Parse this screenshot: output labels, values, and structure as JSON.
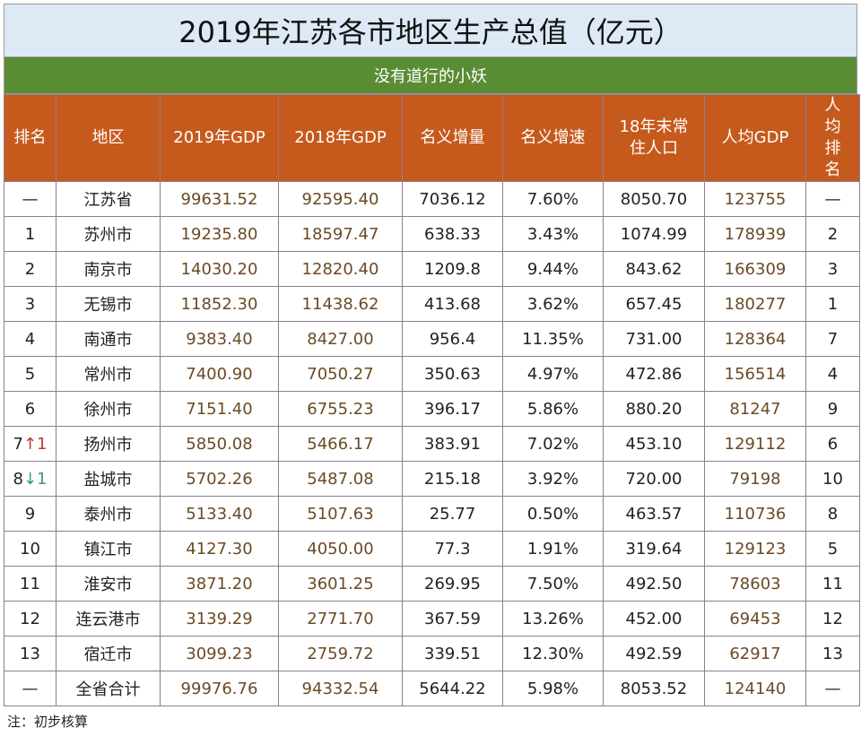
{
  "title": "2019年江苏各市地区生产总值（亿元）",
  "subtitle": "没有道行的小妖",
  "headers": [
    "排名",
    "地区",
    "2019年GDP",
    "2018年GDP",
    "名义增量",
    "名义增速",
    "18年末常住人口",
    "人均GDP",
    "人均排名"
  ],
  "rows": [
    {
      "rank": "—",
      "change": "",
      "change_dir": "",
      "region": "江苏省",
      "gdp2019": "99631.52",
      "gdp2018": "92595.40",
      "increase": "7036.12",
      "growth": "7.60%",
      "population": "8050.70",
      "per_capita": "123755",
      "pc_rank": "—"
    },
    {
      "rank": "1",
      "change": "",
      "change_dir": "",
      "region": "苏州市",
      "gdp2019": "19235.80",
      "gdp2018": "18597.47",
      "increase": "638.33",
      "growth": "3.43%",
      "population": "1074.99",
      "per_capita": "178939",
      "pc_rank": "2"
    },
    {
      "rank": "2",
      "change": "",
      "change_dir": "",
      "region": "南京市",
      "gdp2019": "14030.20",
      "gdp2018": "12820.40",
      "increase": "1209.8",
      "growth": "9.44%",
      "population": "843.62",
      "per_capita": "166309",
      "pc_rank": "3"
    },
    {
      "rank": "3",
      "change": "",
      "change_dir": "",
      "region": "无锡市",
      "gdp2019": "11852.30",
      "gdp2018": "11438.62",
      "increase": "413.68",
      "growth": "3.62%",
      "population": "657.45",
      "per_capita": "180277",
      "pc_rank": "1"
    },
    {
      "rank": "4",
      "change": "",
      "change_dir": "",
      "region": "南通市",
      "gdp2019": "9383.40",
      "gdp2018": "8427.00",
      "increase": "956.4",
      "growth": "11.35%",
      "population": "731.00",
      "per_capita": "128364",
      "pc_rank": "7"
    },
    {
      "rank": "5",
      "change": "",
      "change_dir": "",
      "region": "常州市",
      "gdp2019": "7400.90",
      "gdp2018": "7050.27",
      "increase": "350.63",
      "growth": "4.97%",
      "population": "472.86",
      "per_capita": "156514",
      "pc_rank": "4"
    },
    {
      "rank": "6",
      "change": "",
      "change_dir": "",
      "region": "徐州市",
      "gdp2019": "7151.40",
      "gdp2018": "6755.23",
      "increase": "396.17",
      "growth": "5.86%",
      "population": "880.20",
      "per_capita": "81247",
      "pc_rank": "9"
    },
    {
      "rank": "7",
      "change": "↑1",
      "change_dir": "up",
      "region": "扬州市",
      "gdp2019": "5850.08",
      "gdp2018": "5466.17",
      "increase": "383.91",
      "growth": "7.02%",
      "population": "453.10",
      "per_capita": "129112",
      "pc_rank": "6"
    },
    {
      "rank": "8",
      "change": "↓1",
      "change_dir": "dn",
      "region": "盐城市",
      "gdp2019": "5702.26",
      "gdp2018": "5487.08",
      "increase": "215.18",
      "growth": "3.92%",
      "population": "720.00",
      "per_capita": "79198",
      "pc_rank": "10"
    },
    {
      "rank": "9",
      "change": "",
      "change_dir": "",
      "region": "泰州市",
      "gdp2019": "5133.40",
      "gdp2018": "5107.63",
      "increase": "25.77",
      "growth": "0.50%",
      "population": "463.57",
      "per_capita": "110736",
      "pc_rank": "8"
    },
    {
      "rank": "10",
      "change": "",
      "change_dir": "",
      "region": "镇江市",
      "gdp2019": "4127.30",
      "gdp2018": "4050.00",
      "increase": "77.3",
      "growth": "1.91%",
      "population": "319.64",
      "per_capita": "129123",
      "pc_rank": "5"
    },
    {
      "rank": "11",
      "change": "",
      "change_dir": "",
      "region": "淮安市",
      "gdp2019": "3871.20",
      "gdp2018": "3601.25",
      "increase": "269.95",
      "growth": "7.50%",
      "population": "492.50",
      "per_capita": "78603",
      "pc_rank": "11"
    },
    {
      "rank": "12",
      "change": "",
      "change_dir": "",
      "region": "连云港市",
      "gdp2019": "3139.29",
      "gdp2018": "2771.70",
      "increase": "367.59",
      "growth": "13.26%",
      "population": "452.00",
      "per_capita": "69453",
      "pc_rank": "12"
    },
    {
      "rank": "13",
      "change": "",
      "change_dir": "",
      "region": "宿迁市",
      "gdp2019": "3099.23",
      "gdp2018": "2759.72",
      "increase": "339.51",
      "growth": "12.30%",
      "population": "492.59",
      "per_capita": "62917",
      "pc_rank": "13"
    },
    {
      "rank": "—",
      "change": "",
      "change_dir": "",
      "region": "全省合计",
      "gdp2019": "99976.76",
      "gdp2018": "94332.54",
      "increase": "5644.22",
      "growth": "5.98%",
      "population": "8053.52",
      "per_capita": "124140",
      "pc_rank": "—"
    }
  ],
  "note": "注：初步核算",
  "colors": {
    "title_bg": "#dde9f5",
    "subtitle_bg": "#5a8c34",
    "header_bg": "#c65a1c",
    "gdp_text": "#6b4a26",
    "rank_up": "#c0392b",
    "rank_down": "#3a9a7a"
  }
}
